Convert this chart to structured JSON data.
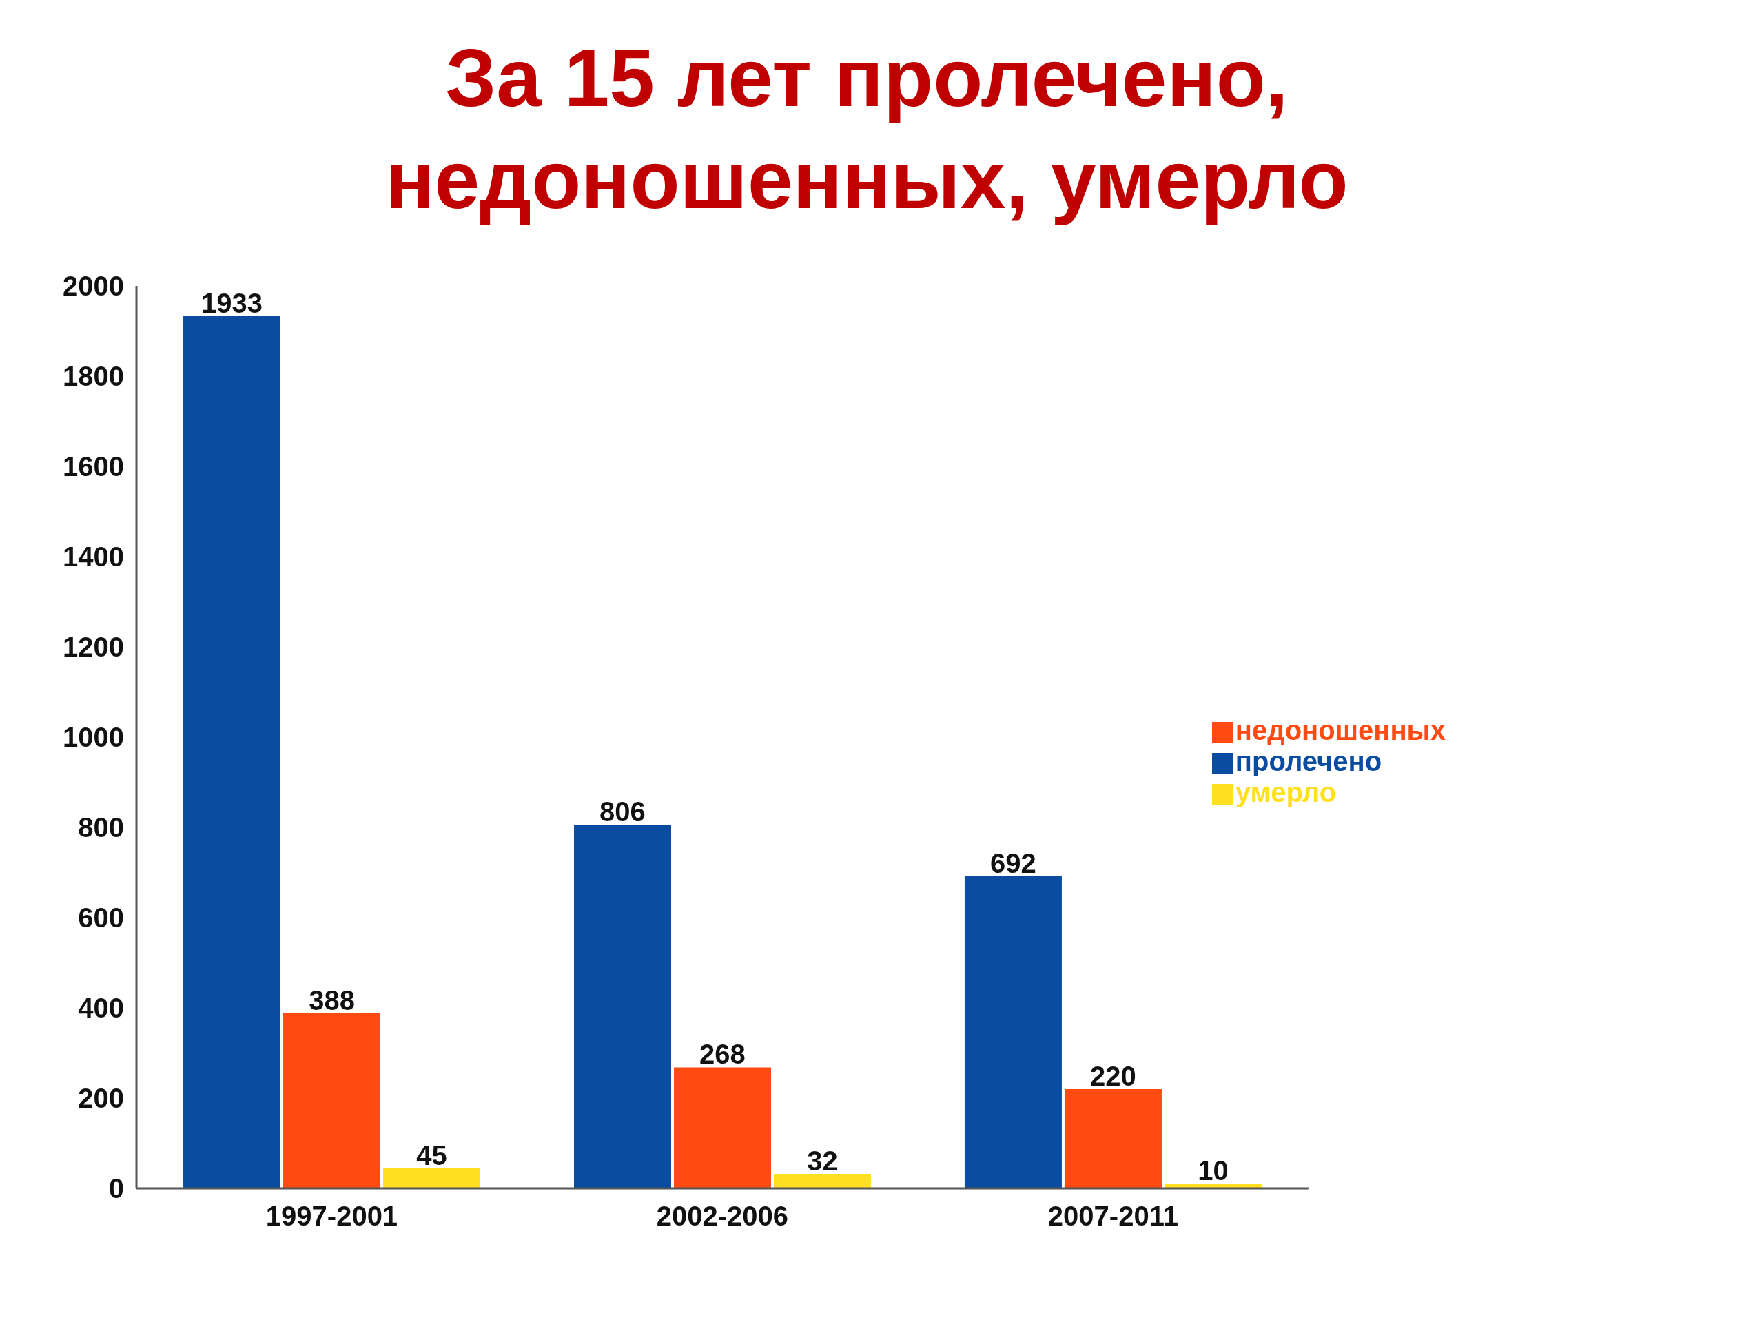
{
  "chart_data": {
    "type": "bar",
    "title": "За 15 лет пролечено, недоношенных, умерло",
    "categories": [
      "1997-2001",
      "2002-2006",
      "2007-2011"
    ],
    "series": [
      {
        "name": "пролечено",
        "color": "#0a4ca0",
        "values": [
          1933,
          806,
          692
        ]
      },
      {
        "name": "недоношенных",
        "color": "#ff4a12",
        "values": [
          388,
          268,
          220
        ]
      },
      {
        "name": "умерло",
        "color": "#ffe020",
        "values": [
          45,
          32,
          10
        ]
      }
    ],
    "ylim": [
      0,
      2000
    ],
    "yticks": [
      0,
      200,
      400,
      600,
      800,
      1000,
      1200,
      1400,
      1600,
      1800,
      2000
    ],
    "grid": false,
    "legend": "right",
    "data_labels": true
  }
}
